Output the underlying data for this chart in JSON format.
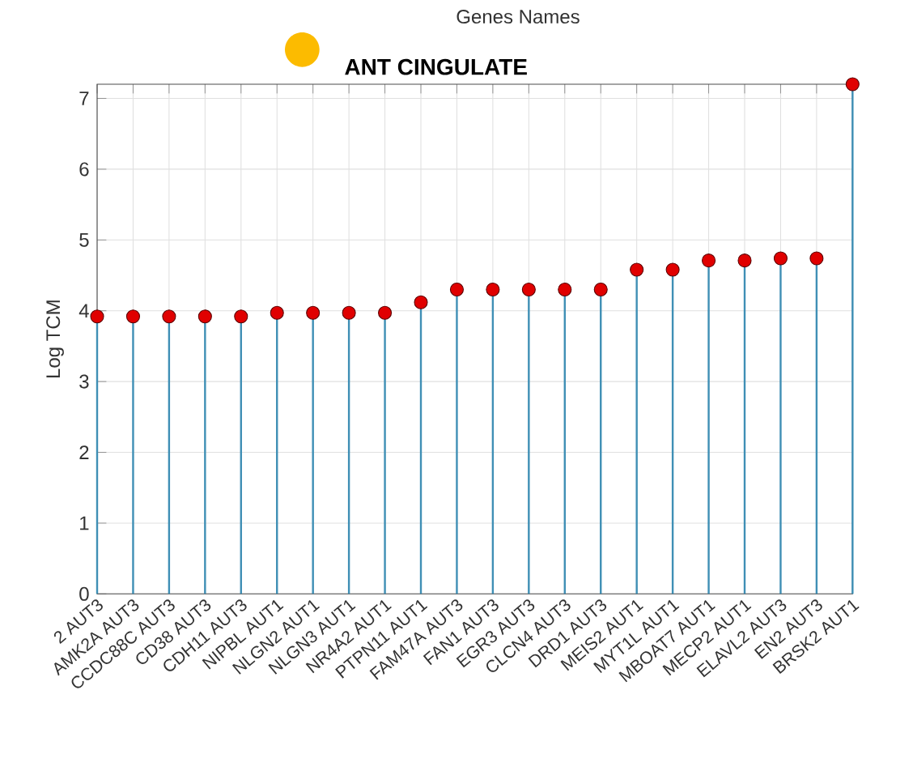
{
  "chart_data": {
    "type": "lollipop",
    "title": "ANT CINGULATE",
    "ylabel": "Log TCM",
    "annotations": [
      "Genes Names"
    ],
    "categories": [
      "2 AUT3",
      "AMK2A AUT3",
      "CCDC88C AUT3",
      "CD38 AUT3",
      "CDH11 AUT3",
      "NIPBL AUT1",
      "NLGN2 AUT1",
      "NLGN3 AUT1",
      "NR4A2 AUT1",
      "PTPN11 AUT1",
      "FAM47A AUT3",
      "FAN1 AUT3",
      "EGR3 AUT3",
      "CLCN4 AUT3",
      "DRD1 AUT3",
      "MEIS2 AUT1",
      "MYT1L AUT1",
      "MBOAT7 AUT1",
      "MECP2 AUT1",
      "ELAVL2 AUT3",
      "EN2 AUT3",
      "BRSK2 AUT1"
    ],
    "series": [
      {
        "color": "#e00000",
        "values": [
          3.92,
          3.92,
          3.92,
          3.92,
          3.92,
          3.97,
          3.97,
          3.97,
          3.97,
          4.12,
          4.3,
          4.3,
          4.3,
          4.3,
          4.3,
          4.58,
          4.58,
          4.71,
          4.71,
          4.74,
          4.74,
          7.2
        ]
      }
    ],
    "ylim": [
      0,
      7.2
    ],
    "yticks": [
      0,
      1,
      2,
      3,
      4,
      5,
      6,
      7
    ],
    "grid": true,
    "marker": "circle"
  }
}
